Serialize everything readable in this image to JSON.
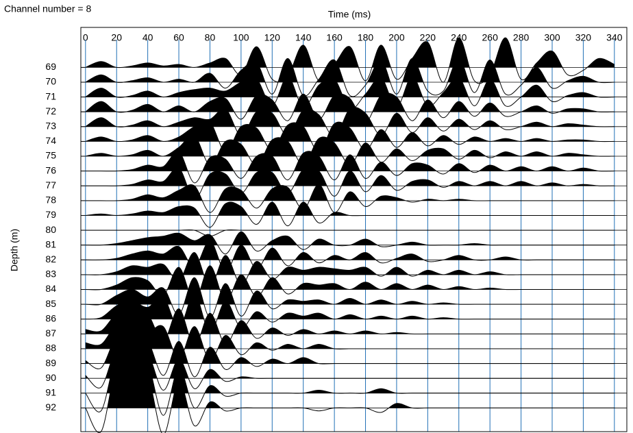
{
  "chart_data": {
    "type": "wiggle",
    "title": "Channel number = 8",
    "x_label": "Time (ms)",
    "y_label": "Depth (m)",
    "xlim": [
      -3,
      348
    ],
    "ylim": [
      66.3,
      93.6
    ],
    "xticks": [
      0,
      20,
      40,
      60,
      80,
      100,
      120,
      140,
      160,
      180,
      200,
      220,
      240,
      260,
      280,
      300,
      320,
      340
    ],
    "yticks": [
      69,
      70,
      71,
      72,
      73,
      74,
      75,
      76,
      77,
      78,
      79,
      80,
      81,
      82,
      83,
      84,
      85,
      86,
      87,
      88,
      89,
      90,
      91,
      92
    ],
    "grid": true,
    "grid_color": "#1f6fb5",
    "color": "#000000",
    "x": [
      0,
      10,
      20,
      30,
      40,
      50,
      60,
      70,
      80,
      90,
      100,
      110,
      120,
      130,
      140,
      150,
      160,
      170,
      180,
      190,
      200,
      210,
      220,
      230,
      240,
      250,
      260,
      270,
      280,
      290,
      300,
      310,
      320,
      330,
      340
    ],
    "series": [
      {
        "depth": 69,
        "values": [
          0,
          0.4,
          0,
          0.1,
          0.3,
          0.1,
          0.2,
          0,
          0.3,
          0.6,
          -0.5,
          1.4,
          -0.8,
          -0.6,
          1.5,
          -0.9,
          0.2,
          1.4,
          -0.9,
          1.5,
          -0.8,
          0.6,
          1.7,
          -1,
          2.0,
          -0.9,
          -0.5,
          2.0,
          -0.8,
          0.3,
          1.1,
          -0.5,
          -0.2,
          0.6,
          0.2
        ]
      },
      {
        "depth": 70,
        "values": [
          0,
          0.5,
          0,
          0.1,
          0.3,
          0,
          0.2,
          0,
          0.6,
          -0.4,
          0.8,
          1.3,
          -0.8,
          1.6,
          -0.9,
          0.2,
          1.5,
          -0.9,
          -0.2,
          1.5,
          -0.8,
          1.6,
          -0.6,
          -0.6,
          1.6,
          -0.7,
          1.5,
          -0.8,
          -0.2,
          1.0,
          -0.4,
          0.1,
          0.4,
          0,
          0
        ]
      },
      {
        "depth": 71,
        "values": [
          0,
          0.6,
          0,
          0.1,
          0.4,
          0,
          0.3,
          0.5,
          0.6,
          0.4,
          1.0,
          1.2,
          -0.6,
          1.4,
          -0.7,
          0.8,
          1.2,
          -0.8,
          0.2,
          1.3,
          -0.7,
          1.4,
          -0.6,
          0.3,
          1.3,
          -0.6,
          1.2,
          -0.6,
          0,
          0.8,
          -0.3,
          0.1,
          0.3,
          0,
          0
        ]
      },
      {
        "depth": 72,
        "values": [
          0,
          0.7,
          0,
          0.1,
          0.5,
          0,
          0.4,
          0,
          0.7,
          0.9,
          -0.5,
          1.1,
          0.8,
          -0.6,
          1.2,
          -0.5,
          1.1,
          0.9,
          -0.7,
          1.1,
          1.0,
          -0.6,
          0.8,
          -0.4,
          0.7,
          -0.3,
          0.6,
          -0.3,
          0,
          0.4,
          -0.1,
          0.2,
          0.2,
          0,
          0
        ]
      },
      {
        "depth": 73,
        "values": [
          0,
          0.6,
          0,
          0.1,
          0.4,
          0,
          0.3,
          0.6,
          0.5,
          1.2,
          -0.6,
          1.0,
          0.9,
          -0.6,
          1.1,
          0.8,
          -0.7,
          1.2,
          0.9,
          -0.6,
          0.9,
          -0.4,
          0.6,
          -0.3,
          0.5,
          -0.2,
          0.4,
          -0.2,
          0,
          0.3,
          0,
          0.2,
          0.1,
          0,
          0
        ]
      },
      {
        "depth": 74,
        "values": [
          0,
          0.3,
          0,
          0.1,
          0.4,
          0,
          0.3,
          1.0,
          1.3,
          -0.7,
          1.0,
          0.9,
          -0.6,
          1.1,
          1.0,
          -0.7,
          1.2,
          0.9,
          -0.6,
          0.8,
          -0.4,
          0.6,
          -0.3,
          0.4,
          -0.2,
          0.3,
          0,
          0.2,
          0,
          0.2,
          0,
          0.1,
          0.1,
          0,
          0
        ]
      },
      {
        "depth": 75,
        "values": [
          0,
          0.2,
          0,
          0.1,
          0.4,
          0,
          0.6,
          1.4,
          -0.6,
          1.0,
          0.8,
          -0.6,
          1.1,
          1.0,
          -0.6,
          1.2,
          0.9,
          -0.6,
          0.9,
          -0.4,
          0.5,
          -0.3,
          0.4,
          0.5,
          -0.2,
          0.4,
          -0.1,
          0.3,
          0,
          0.3,
          0,
          0.2,
          0.1,
          0,
          0
        ]
      },
      {
        "depth": 76,
        "values": [
          0,
          0,
          0,
          0.1,
          0.4,
          0.3,
          1.3,
          -0.8,
          0.9,
          0.8,
          -0.5,
          1.0,
          1.0,
          -0.6,
          1.2,
          1.0,
          -0.6,
          1.1,
          -0.5,
          0.6,
          -0.3,
          0.5,
          0.4,
          -0.2,
          0.5,
          -0.1,
          0.4,
          0,
          0.3,
          0,
          0.3,
          0,
          0.2,
          0,
          0
        ]
      },
      {
        "depth": 77,
        "values": [
          0,
          0,
          0,
          0.1,
          0.4,
          0.3,
          1.2,
          -0.9,
          0.8,
          0.8,
          -0.5,
          0.9,
          0.9,
          -0.5,
          1.1,
          1.0,
          -0.7,
          1.0,
          -0.4,
          0.7,
          -0.3,
          0.3,
          0.4,
          -0.1,
          0.3,
          0,
          0.3,
          0,
          0.3,
          0,
          0.2,
          0,
          0.1,
          0,
          0
        ]
      },
      {
        "depth": 78,
        "values": [
          0,
          0,
          0,
          0.1,
          0.4,
          0.2,
          0.7,
          1.0,
          -0.8,
          0.8,
          0.7,
          -0.5,
          0.8,
          0.9,
          -0.6,
          1.1,
          -0.8,
          0.6,
          -0.4,
          0.3,
          0.2,
          -0.1,
          0.1,
          0,
          0.1,
          0,
          0,
          0,
          0,
          0,
          0,
          0,
          0,
          0,
          0
        ]
      },
      {
        "depth": 79,
        "values": [
          0,
          0.1,
          0,
          0.1,
          0.3,
          0.2,
          0.6,
          0.5,
          -0.8,
          0.8,
          0.6,
          -0.6,
          0.9,
          -0.7,
          0.9,
          -0.5,
          0.2,
          0,
          0,
          0,
          0,
          0,
          0,
          0,
          0,
          0,
          0,
          0,
          0,
          0,
          0,
          0,
          0,
          0,
          0
        ]
      },
      {
        "depth": 80,
        "values": [
          0,
          0,
          0,
          0,
          0,
          0,
          0,
          0,
          -0.4,
          0,
          0,
          0,
          0,
          0,
          0,
          0,
          0,
          0,
          0,
          0,
          0,
          0,
          0,
          0,
          0,
          0,
          0,
          0,
          0,
          0,
          0,
          0,
          0,
          0,
          0
        ]
      },
      {
        "depth": 81,
        "values": [
          0,
          0,
          0.1,
          0.3,
          0.5,
          0.6,
          0.8,
          0.3,
          0.7,
          -0.6,
          0.9,
          -0.4,
          0.3,
          0.6,
          -0.3,
          0.4,
          0,
          0,
          0.4,
          -0.1,
          0,
          0.2,
          0,
          0,
          0,
          0.1,
          0,
          0,
          0,
          0,
          0,
          0,
          0,
          0,
          0
        ]
      },
      {
        "depth": 82,
        "values": [
          0,
          0,
          0.1,
          0.4,
          0.6,
          0.4,
          0.9,
          -0.5,
          1.3,
          -0.8,
          1.0,
          -0.6,
          0.8,
          -0.4,
          0.5,
          -0.2,
          0.3,
          0,
          0.5,
          -0.2,
          0.1,
          0.4,
          -0.1,
          0,
          0.3,
          0,
          0,
          0.2,
          0,
          0,
          0,
          0,
          0,
          0,
          0
        ]
      },
      {
        "depth": 83,
        "values": [
          0,
          0,
          0.2,
          0.6,
          0.5,
          0.7,
          -0.4,
          1.5,
          -0.8,
          1.3,
          -0.7,
          0.9,
          -0.3,
          0.5,
          0.3,
          0.5,
          0.4,
          0.3,
          0.5,
          -0.1,
          0.5,
          -0.1,
          0.3,
          0,
          0.3,
          0,
          0.2,
          0,
          0,
          0,
          0,
          0,
          0,
          0,
          0
        ]
      },
      {
        "depth": 84,
        "values": [
          0,
          0,
          0.3,
          0.8,
          0.6,
          -0.4,
          1.5,
          -0.8,
          1.6,
          -0.8,
          1.0,
          -0.5,
          0.8,
          -0.3,
          0.4,
          0.3,
          0.4,
          0,
          0.5,
          0,
          0.4,
          0,
          0.3,
          0,
          0.2,
          0,
          0.1,
          0,
          0,
          0,
          0,
          0,
          0,
          0,
          0
        ]
      },
      {
        "depth": 85,
        "values": [
          0,
          0,
          0.6,
          1.0,
          0.5,
          1.1,
          -0.7,
          1.8,
          -0.9,
          1.4,
          -0.8,
          0.9,
          -0.3,
          0.3,
          0.2,
          0.3,
          0,
          0.4,
          0,
          0.3,
          0,
          0.2,
          0,
          0.1,
          0,
          0,
          0,
          0,
          0,
          0,
          0,
          0,
          0,
          0,
          0
        ]
      },
      {
        "depth": 86,
        "values": [
          0,
          0.1,
          0.9,
          1.2,
          0.8,
          1.5,
          -0.6,
          1.7,
          -0.9,
          1.2,
          -0.6,
          0.5,
          -0.2,
          0.4,
          0.2,
          0.4,
          0,
          0.3,
          0,
          0.2,
          0,
          0.2,
          0,
          0.1,
          0,
          0,
          0,
          0,
          0,
          0,
          0,
          0,
          0,
          0,
          0
        ]
      },
      {
        "depth": 87,
        "values": [
          0.3,
          0.2,
          1.3,
          1.0,
          1.3,
          -0.5,
          1.7,
          -0.8,
          1.4,
          -0.7,
          0.9,
          -0.3,
          0.4,
          -0.1,
          0.3,
          0,
          0.2,
          0,
          0.2,
          0,
          0.1,
          0,
          0,
          0,
          0,
          0,
          0,
          0,
          0,
          0,
          0,
          0,
          0,
          0,
          0
        ]
      },
      {
        "depth": 88,
        "values": [
          0.4,
          0.3,
          1.6,
          1.4,
          1.1,
          1.5,
          -0.7,
          1.5,
          -0.8,
          0.9,
          -0.4,
          0.4,
          -0.1,
          0.3,
          0,
          0.3,
          0,
          0,
          0,
          0,
          0,
          0,
          0,
          0,
          0,
          0,
          0,
          0,
          0,
          0,
          0,
          0,
          0,
          0,
          0
        ]
      },
      {
        "depth": 89,
        "values": [
          0.2,
          -0.3,
          1.8,
          1.6,
          1.5,
          -0.8,
          1.5,
          -0.9,
          1.1,
          -0.4,
          0.4,
          -0.2,
          0.3,
          0,
          0.4,
          0,
          0,
          0,
          0,
          0,
          0,
          0,
          0,
          0,
          0,
          0,
          0,
          0,
          0,
          0,
          0,
          0,
          0,
          0,
          0
        ]
      },
      {
        "depth": 90,
        "values": [
          0.2,
          -0.6,
          2.0,
          1.8,
          1.7,
          -0.8,
          1.3,
          -0.7,
          0.6,
          -0.2,
          0.1,
          0,
          0,
          0,
          0,
          0,
          0,
          0,
          0,
          0,
          0,
          0,
          0,
          0,
          0,
          0,
          0,
          0,
          0,
          0,
          0,
          0,
          0,
          0,
          0
        ]
      },
      {
        "depth": 91,
        "values": [
          0,
          -1.2,
          2.5,
          2.2,
          2.0,
          -1.5,
          1.7,
          -1.0,
          0.5,
          -0.2,
          0,
          0,
          0,
          0,
          0,
          0.2,
          0,
          0,
          0,
          0.3,
          0,
          0,
          0,
          0,
          0,
          0,
          0,
          0,
          0,
          0,
          0,
          0,
          0,
          0,
          0
        ]
      },
      {
        "depth": 92,
        "values": [
          0,
          -1.6,
          2.8,
          2.4,
          2.2,
          -1.8,
          1.8,
          -1.2,
          0.4,
          -0.2,
          0,
          0,
          0,
          0,
          0,
          -0.2,
          0,
          0,
          0,
          -0.3,
          0.3,
          0,
          0,
          0,
          0,
          0,
          0,
          0,
          0,
          0,
          0,
          0,
          0,
          0,
          0
        ]
      }
    ]
  }
}
